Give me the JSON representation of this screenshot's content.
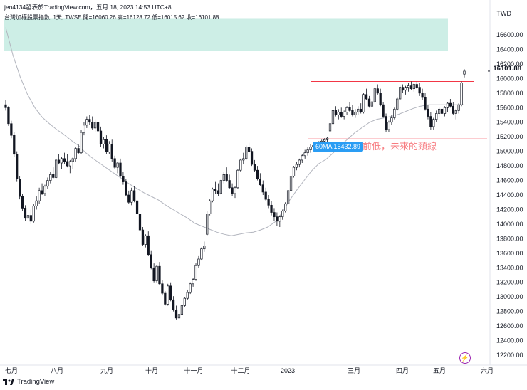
{
  "header": {
    "credit": "jen4134發表於TradingView.com，五月 18, 2023 14:53 UTC+8",
    "subtitle": "台灣加權股票指數, 1天, TWSE  開=16060.26  高=16128.72  低=16015.62  收=16101.88"
  },
  "currency_label": "TWD",
  "last_price_tag": "16101.88",
  "ma_tag": "60MA 15432.89",
  "annotation_text": "前低，未來的頸線",
  "footer_brand": "TradingView",
  "chart_data": {
    "type": "candlestick",
    "title": "台灣加權股票指數, 1天, TWSE",
    "ylim": [
      12000,
      16900
    ],
    "ytick_labels": [
      "12200.00",
      "12400.00",
      "12600.00",
      "12800.00",
      "13000.00",
      "13200.00",
      "13400.00",
      "13600.00",
      "13800.00",
      "14000.00",
      "14200.00",
      "14400.00",
      "14600.00",
      "14800.00",
      "15000.00",
      "15200.00",
      "15400.00",
      "15600.00",
      "15800.00",
      "16000.00",
      "16200.00",
      "16400.00",
      "16600.00"
    ],
    "x_tick_labels": [
      "七月",
      "八月",
      "九月",
      "十月",
      "十一月",
      "十二月",
      "2023",
      "三月",
      "四月",
      "五月",
      "六月"
    ],
    "last_ohlc": {
      "open": 16060.26,
      "high": 16128.72,
      "low": 16015.62,
      "close": 16101.88
    },
    "ma60_last": 15432.89,
    "horizontal_lines": [
      15960,
      15170
    ],
    "shaded_zone": [
      16380,
      16830
    ],
    "candles": [
      [
        15640,
        15700,
        15560,
        15600
      ],
      [
        15600,
        15620,
        15350,
        15380
      ],
      [
        15380,
        15420,
        15180,
        15220
      ],
      [
        15220,
        15260,
        14920,
        14960
      ],
      [
        14960,
        15000,
        14580,
        14620
      ],
      [
        14620,
        14660,
        14340,
        14380
      ],
      [
        14380,
        14420,
        14180,
        14220
      ],
      [
        14220,
        14260,
        14040,
        14080
      ],
      [
        14080,
        14160,
        13980,
        14120
      ],
      [
        14120,
        14200,
        14000,
        14040
      ],
      [
        14040,
        14280,
        14020,
        14250
      ],
      [
        14250,
        14380,
        14200,
        14320
      ],
      [
        14320,
        14500,
        14280,
        14460
      ],
      [
        14460,
        14560,
        14400,
        14420
      ],
      [
        14420,
        14540,
        14380,
        14520
      ],
      [
        14520,
        14640,
        14480,
        14600
      ],
      [
        14600,
        14720,
        14560,
        14680
      ],
      [
        14680,
        14780,
        14620,
        14640
      ],
      [
        14640,
        14900,
        14620,
        14880
      ],
      [
        14880,
        14960,
        14820,
        14840
      ],
      [
        14840,
        14920,
        14760,
        14900
      ],
      [
        14900,
        14980,
        14820,
        14860
      ],
      [
        14860,
        14960,
        14780,
        14800
      ],
      [
        14800,
        14880,
        14700,
        14860
      ],
      [
        14860,
        14920,
        14760,
        14900
      ],
      [
        14900,
        15060,
        14860,
        15040
      ],
      [
        15040,
        15100,
        14960,
        14980
      ],
      [
        14980,
        15300,
        14960,
        15260
      ],
      [
        15260,
        15400,
        15220,
        15360
      ],
      [
        15360,
        15480,
        15320,
        15440
      ],
      [
        15440,
        15500,
        15360,
        15400
      ],
      [
        15400,
        15480,
        15300,
        15320
      ],
      [
        15320,
        15440,
        15260,
        15400
      ],
      [
        15400,
        15460,
        15240,
        15280
      ],
      [
        15280,
        15340,
        15060,
        15100
      ],
      [
        15100,
        15200,
        15040,
        15160
      ],
      [
        15160,
        15220,
        14960,
        14990
      ],
      [
        14990,
        15140,
        14960,
        15100
      ],
      [
        15100,
        15160,
        14860,
        14900
      ],
      [
        14900,
        14940,
        14760,
        14780
      ],
      [
        14780,
        14860,
        14700,
        14840
      ],
      [
        14840,
        14900,
        14640,
        14660
      ],
      [
        14660,
        14720,
        14540,
        14580
      ],
      [
        14580,
        14620,
        14380,
        14400
      ],
      [
        14400,
        14460,
        14280,
        14300
      ],
      [
        14300,
        14500,
        14260,
        14460
      ],
      [
        14460,
        14520,
        14300,
        14320
      ],
      [
        14320,
        14360,
        14120,
        14140
      ],
      [
        14140,
        14180,
        13900,
        13920
      ],
      [
        13920,
        13960,
        13700,
        13720
      ],
      [
        13720,
        13860,
        13680,
        13840
      ],
      [
        13840,
        13900,
        13560,
        13580
      ],
      [
        13580,
        13640,
        13380,
        13400
      ],
      [
        13400,
        13460,
        13200,
        13220
      ],
      [
        13220,
        13440,
        13200,
        13420
      ],
      [
        13420,
        13480,
        13160,
        13180
      ],
      [
        13180,
        13230,
        13020,
        13050
      ],
      [
        13050,
        13080,
        12880,
        12900
      ],
      [
        12900,
        13180,
        12880,
        13150
      ],
      [
        13150,
        13200,
        12940,
        12960
      ],
      [
        12960,
        13010,
        12800,
        12820
      ],
      [
        12820,
        12880,
        12690,
        12710
      ],
      [
        12710,
        12780,
        12640,
        12760
      ],
      [
        12760,
        12900,
        12740,
        12880
      ],
      [
        12880,
        13000,
        12860,
        12980
      ],
      [
        12980,
        13100,
        12960,
        13060
      ],
      [
        13060,
        13200,
        13040,
        13180
      ],
      [
        13180,
        13260,
        13140,
        13240
      ],
      [
        13240,
        13460,
        13220,
        13430
      ],
      [
        13430,
        13560,
        13400,
        13520
      ],
      [
        13520,
        13680,
        13500,
        13660
      ],
      [
        13660,
        13760,
        13620,
        13700
      ],
      [
        13860,
        14180,
        13840,
        14140
      ],
      [
        14140,
        14340,
        14120,
        14320
      ],
      [
        14320,
        14500,
        14300,
        14480
      ],
      [
        14480,
        14580,
        14420,
        14460
      ],
      [
        14460,
        14560,
        14380,
        14420
      ],
      [
        14420,
        14620,
        14400,
        14600
      ],
      [
        14600,
        14720,
        14560,
        14680
      ],
      [
        14680,
        14780,
        14580,
        14600
      ],
      [
        14600,
        14680,
        14480,
        14500
      ],
      [
        14500,
        14560,
        14380,
        14420
      ],
      [
        14420,
        14520,
        14360,
        14500
      ],
      [
        14500,
        14760,
        14480,
        14740
      ],
      [
        14740,
        14900,
        14720,
        14880
      ],
      [
        14880,
        14980,
        14820,
        14900
      ],
      [
        14900,
        15080,
        14880,
        15060
      ],
      [
        15060,
        15120,
        14980,
        15000
      ],
      [
        15000,
        15040,
        14800,
        14820
      ],
      [
        14820,
        14880,
        14720,
        14740
      ],
      [
        14740,
        14800,
        14600,
        14620
      ],
      [
        14620,
        14700,
        14520,
        14540
      ],
      [
        14540,
        14600,
        14400,
        14440
      ],
      [
        14440,
        14500,
        14320,
        14340
      ],
      [
        14340,
        14400,
        14220,
        14260
      ],
      [
        14260,
        14320,
        14120,
        14160
      ],
      [
        14160,
        14220,
        14040,
        14100
      ],
      [
        14100,
        14160,
        13980,
        14040
      ],
      [
        14040,
        14120,
        13960,
        14100
      ],
      [
        14100,
        14200,
        14060,
        14180
      ],
      [
        14180,
        14300,
        14160,
        14280
      ],
      [
        14280,
        14480,
        14260,
        14460
      ],
      [
        14460,
        14680,
        14440,
        14660
      ],
      [
        14660,
        14800,
        14640,
        14780
      ],
      [
        14780,
        14860,
        14740,
        14820
      ],
      [
        14820,
        14900,
        14780,
        14880
      ],
      [
        14880,
        14960,
        14840,
        14940
      ],
      [
        14940,
        15020,
        14900,
        14980
      ],
      [
        14980,
        15060,
        14940,
        15020
      ],
      [
        15020,
        15100,
        14980,
        15060
      ],
      [
        15060,
        15120,
        15020,
        15080
      ],
      [
        15080,
        15120,
        15040,
        15100
      ],
      [
        15100,
        15140,
        15060,
        15120
      ],
      [
        15120,
        15160,
        15080,
        15140
      ],
      [
        15140,
        15180,
        15100,
        15160
      ],
      [
        15160,
        15200,
        15120,
        15180
      ],
      [
        15280,
        15400,
        15240,
        15380
      ],
      [
        15380,
        15580,
        15360,
        15560
      ],
      [
        15560,
        15620,
        15480,
        15500
      ],
      [
        15500,
        15580,
        15440,
        15540
      ],
      [
        15540,
        15600,
        15460,
        15480
      ],
      [
        15480,
        15560,
        15440,
        15540
      ],
      [
        15540,
        15620,
        15500,
        15600
      ],
      [
        15600,
        15680,
        15540,
        15560
      ],
      [
        15560,
        15640,
        15480,
        15500
      ],
      [
        15500,
        15580,
        15460,
        15540
      ],
      [
        15540,
        15620,
        15500,
        15580
      ],
      [
        15580,
        15660,
        15520,
        15540
      ],
      [
        15540,
        15800,
        15520,
        15780
      ],
      [
        15780,
        15860,
        15700,
        15720
      ],
      [
        15720,
        15760,
        15600,
        15620
      ],
      [
        15620,
        15700,
        15560,
        15680
      ],
      [
        15680,
        15880,
        15660,
        15860
      ],
      [
        15860,
        15920,
        15780,
        15800
      ],
      [
        15800,
        15860,
        15620,
        15640
      ],
      [
        15640,
        15680,
        15460,
        15480
      ],
      [
        15480,
        15520,
        15260,
        15300
      ],
      [
        15300,
        15420,
        15260,
        15400
      ],
      [
        15400,
        15500,
        15360,
        15460
      ],
      [
        15460,
        15600,
        15440,
        15580
      ],
      [
        15580,
        15740,
        15560,
        15720
      ],
      [
        15720,
        15900,
        15700,
        15880
      ],
      [
        15880,
        15920,
        15800,
        15840
      ],
      [
        15840,
        15900,
        15780,
        15880
      ],
      [
        15880,
        15940,
        15820,
        15900
      ],
      [
        15900,
        15960,
        15840,
        15860
      ],
      [
        15860,
        15940,
        15820,
        15920
      ],
      [
        15920,
        15960,
        15860,
        15880
      ],
      [
        15880,
        15940,
        15760,
        15800
      ],
      [
        15800,
        15860,
        15700,
        15740
      ],
      [
        15740,
        15800,
        15560,
        15580
      ],
      [
        15580,
        15640,
        15440,
        15480
      ],
      [
        15480,
        15540,
        15300,
        15340
      ],
      [
        15340,
        15460,
        15300,
        15440
      ],
      [
        15440,
        15560,
        15400,
        15520
      ],
      [
        15520,
        15600,
        15460,
        15580
      ],
      [
        15580,
        15640,
        15500,
        15520
      ],
      [
        15520,
        15620,
        15480,
        15600
      ],
      [
        15600,
        15680,
        15540,
        15660
      ],
      [
        15660,
        15720,
        15600,
        15620
      ],
      [
        15620,
        15680,
        15500,
        15520
      ],
      [
        15520,
        15580,
        15440,
        15560
      ],
      [
        15560,
        15660,
        15520,
        15640
      ],
      [
        15640,
        15960,
        15620,
        15940
      ],
      [
        16060.26,
        16128.72,
        16015.62,
        16101.88
      ]
    ],
    "ma60": [
      16700,
      16320,
      16020,
      15780,
      15600,
      15470,
      15380,
      15300,
      15230,
      15150,
      15080,
      14980,
      14900,
      14830,
      14760,
      14690,
      14620,
      14550,
      14490,
      14430,
      14380,
      14330,
      14260,
      14200,
      14140,
      14080,
      14010,
      13970,
      13930,
      13890,
      13860,
      13840,
      13860,
      13880,
      13890,
      13920,
      13960,
      14030,
      14160,
      14330,
      14470,
      14600,
      14730,
      14830,
      14890,
      14980,
      15080,
      15170,
      15260,
      15330,
      15400,
      15440,
      15460,
      15480,
      15510,
      15550,
      15590,
      15620,
      15640,
      15640,
      15640,
      15640,
      15640,
      15640
    ],
    "x_dates_index_to_tick": [
      0,
      10,
      20,
      30,
      40,
      50,
      60,
      73,
      83,
      93,
      103
    ]
  }
}
